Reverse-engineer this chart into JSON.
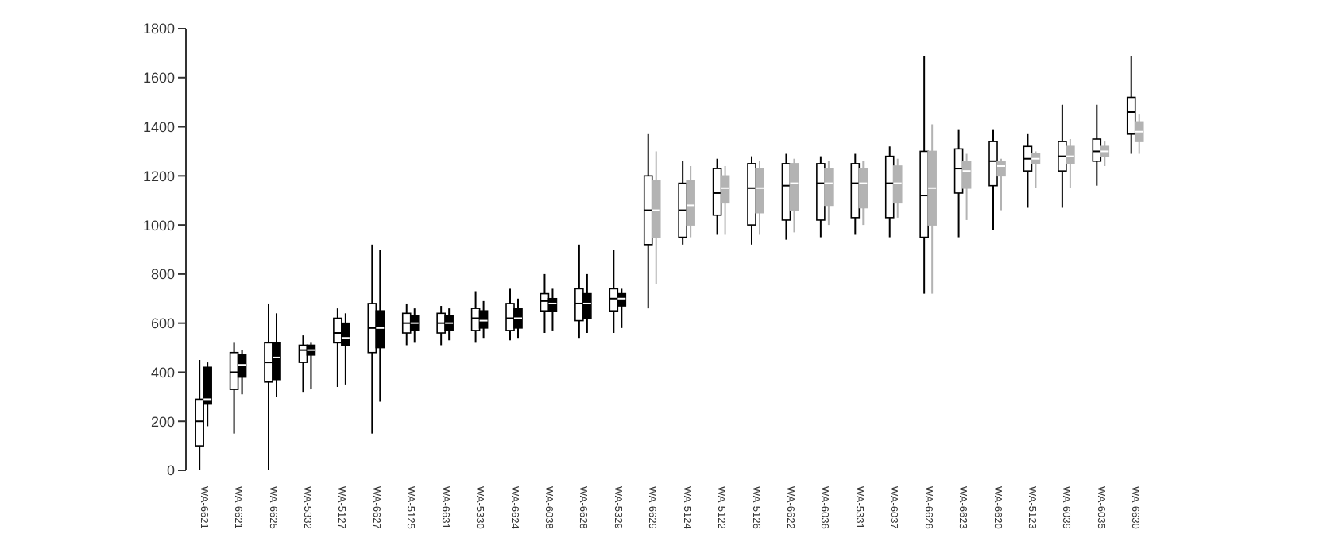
{
  "chart_data": {
    "type": "box",
    "categories": [
      "WA-6621",
      "WA-6621",
      "WA-6625",
      "WA-5332",
      "WA-5127",
      "WA-6627",
      "WA-5125",
      "WA-6631",
      "WA-5330",
      "WA-6624",
      "WA-6038",
      "WA-6628",
      "WA-5329",
      "WA-6629",
      "WA-5124",
      "WA-5122",
      "WA-5126",
      "WA-6622",
      "WA-6036",
      "WA-5331",
      "WA-6037",
      "WA-6626",
      "WA-6623",
      "WA-6620",
      "WA-5123",
      "WA-6039",
      "WA-6035",
      "WA-6630"
    ],
    "ylim": [
      0,
      1800
    ],
    "yticks": [
      0,
      200,
      400,
      600,
      800,
      1000,
      1200,
      1400,
      1600,
      1800
    ],
    "grid": false,
    "legend": false,
    "series": [
      {
        "color": "#000000",
        "boxes": [
          {
            "low": 0,
            "q1": 100,
            "median": 200,
            "q3": 290,
            "high": 450
          },
          {
            "low": 150,
            "q1": 330,
            "median": 400,
            "q3": 480,
            "high": 520
          },
          {
            "low": 0,
            "q1": 360,
            "median": 440,
            "q3": 520,
            "high": 680
          },
          {
            "low": 320,
            "q1": 440,
            "median": 490,
            "q3": 510,
            "high": 550
          },
          {
            "low": 340,
            "q1": 520,
            "median": 560,
            "q3": 620,
            "high": 660
          },
          {
            "low": 150,
            "q1": 480,
            "median": 580,
            "q3": 680,
            "high": 920
          },
          {
            "low": 510,
            "q1": 560,
            "median": 600,
            "q3": 640,
            "high": 680
          },
          {
            "low": 510,
            "q1": 560,
            "median": 600,
            "q3": 640,
            "high": 670
          },
          {
            "low": 520,
            "q1": 570,
            "median": 620,
            "q3": 660,
            "high": 730
          },
          {
            "low": 530,
            "q1": 570,
            "median": 620,
            "q3": 680,
            "high": 740
          },
          {
            "low": 560,
            "q1": 650,
            "median": 690,
            "q3": 720,
            "high": 800
          },
          {
            "low": 540,
            "q1": 610,
            "median": 680,
            "q3": 740,
            "high": 920
          },
          {
            "low": 560,
            "q1": 650,
            "median": 700,
            "q3": 740,
            "high": 900
          },
          {
            "low": 660,
            "q1": 920,
            "median": 1060,
            "q3": 1200,
            "high": 1370
          },
          {
            "low": 920,
            "q1": 950,
            "median": 1060,
            "q3": 1170,
            "high": 1260
          },
          {
            "low": 960,
            "q1": 1040,
            "median": 1130,
            "q3": 1230,
            "high": 1270
          },
          {
            "low": 920,
            "q1": 1000,
            "median": 1150,
            "q3": 1250,
            "high": 1280
          },
          {
            "low": 940,
            "q1": 1020,
            "median": 1160,
            "q3": 1250,
            "high": 1290
          },
          {
            "low": 950,
            "q1": 1020,
            "median": 1170,
            "q3": 1250,
            "high": 1280
          },
          {
            "low": 960,
            "q1": 1030,
            "median": 1170,
            "q3": 1250,
            "high": 1290
          },
          {
            "low": 950,
            "q1": 1030,
            "median": 1170,
            "q3": 1280,
            "high": 1320
          },
          {
            "low": 720,
            "q1": 950,
            "median": 1120,
            "q3": 1300,
            "high": 1690
          },
          {
            "low": 950,
            "q1": 1130,
            "median": 1230,
            "q3": 1310,
            "high": 1390
          },
          {
            "low": 980,
            "q1": 1160,
            "median": 1260,
            "q3": 1340,
            "high": 1390
          },
          {
            "low": 1070,
            "q1": 1220,
            "median": 1270,
            "q3": 1320,
            "high": 1370
          },
          {
            "low": 1070,
            "q1": 1220,
            "median": 1280,
            "q3": 1340,
            "high": 1490
          },
          {
            "low": 1160,
            "q1": 1260,
            "median": 1300,
            "q3": 1350,
            "high": 1490
          },
          {
            "low": 1290,
            "q1": 1370,
            "median": 1460,
            "q3": 1520,
            "high": 1690
          }
        ]
      },
      {
        "colors": [
          "#000000",
          "#000000",
          "#000000",
          "#000000",
          "#000000",
          "#000000",
          "#000000",
          "#000000",
          "#000000",
          "#000000",
          "#000000",
          "#000000",
          "#000000",
          "#b3b3b3",
          "#b3b3b3",
          "#b3b3b3",
          "#b3b3b3",
          "#b3b3b3",
          "#b3b3b3",
          "#b3b3b3",
          "#b3b3b3",
          "#b3b3b3",
          "#b3b3b3",
          "#b3b3b3",
          "#b3b3b3",
          "#b3b3b3",
          "#b3b3b3",
          "#b3b3b3"
        ],
        "boxes": [
          {
            "low": 180,
            "q1": 270,
            "median": 290,
            "q3": 420,
            "high": 440
          },
          {
            "low": 310,
            "q1": 380,
            "median": 430,
            "q3": 470,
            "high": 490
          },
          {
            "low": 300,
            "q1": 370,
            "median": 460,
            "q3": 520,
            "high": 640
          },
          {
            "low": 330,
            "q1": 470,
            "median": 490,
            "q3": 510,
            "high": 520
          },
          {
            "low": 350,
            "q1": 510,
            "median": 540,
            "q3": 600,
            "high": 640
          },
          {
            "low": 280,
            "q1": 500,
            "median": 580,
            "q3": 650,
            "high": 900
          },
          {
            "low": 520,
            "q1": 570,
            "median": 600,
            "q3": 630,
            "high": 660
          },
          {
            "low": 530,
            "q1": 570,
            "median": 600,
            "q3": 630,
            "high": 660
          },
          {
            "low": 540,
            "q1": 580,
            "median": 610,
            "q3": 650,
            "high": 690
          },
          {
            "low": 540,
            "q1": 580,
            "median": 620,
            "q3": 660,
            "high": 700
          },
          {
            "low": 570,
            "q1": 650,
            "median": 680,
            "q3": 700,
            "high": 740
          },
          {
            "low": 560,
            "q1": 620,
            "median": 680,
            "q3": 720,
            "high": 800
          },
          {
            "low": 580,
            "q1": 670,
            "median": 700,
            "q3": 720,
            "high": 740
          },
          {
            "low": 760,
            "q1": 950,
            "median": 1060,
            "q3": 1180,
            "high": 1300
          },
          {
            "low": 950,
            "q1": 1000,
            "median": 1080,
            "q3": 1180,
            "high": 1240
          },
          {
            "low": 960,
            "q1": 1090,
            "median": 1150,
            "q3": 1200,
            "high": 1240
          },
          {
            "low": 960,
            "q1": 1050,
            "median": 1150,
            "q3": 1230,
            "high": 1260
          },
          {
            "low": 970,
            "q1": 1060,
            "median": 1170,
            "q3": 1250,
            "high": 1270
          },
          {
            "low": 1000,
            "q1": 1080,
            "median": 1170,
            "q3": 1230,
            "high": 1260
          },
          {
            "low": 1000,
            "q1": 1070,
            "median": 1170,
            "q3": 1230,
            "high": 1260
          },
          {
            "low": 1030,
            "q1": 1090,
            "median": 1170,
            "q3": 1240,
            "high": 1270
          },
          {
            "low": 720,
            "q1": 1000,
            "median": 1150,
            "q3": 1300,
            "high": 1410
          },
          {
            "low": 1020,
            "q1": 1150,
            "median": 1220,
            "q3": 1260,
            "high": 1290
          },
          {
            "low": 1060,
            "q1": 1200,
            "median": 1240,
            "q3": 1260,
            "high": 1270
          },
          {
            "low": 1150,
            "q1": 1250,
            "median": 1270,
            "q3": 1290,
            "high": 1300
          },
          {
            "low": 1150,
            "q1": 1250,
            "median": 1280,
            "q3": 1320,
            "high": 1350
          },
          {
            "low": 1240,
            "q1": 1280,
            "median": 1300,
            "q3": 1320,
            "high": 1340
          },
          {
            "low": 1290,
            "q1": 1340,
            "median": 1380,
            "q3": 1420,
            "high": 1450
          }
        ]
      }
    ]
  }
}
